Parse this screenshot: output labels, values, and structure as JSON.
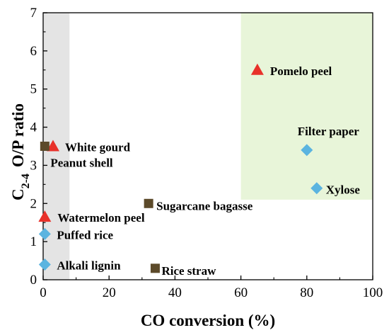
{
  "chart_data": {
    "type": "scatter",
    "title": "",
    "xlabel": "CO conversion (%)",
    "ylabel": {
      "main": "C",
      "subscript": "2-4",
      "rest": "O/P ratio"
    },
    "xlim": [
      0,
      100
    ],
    "ylim": [
      0,
      7
    ],
    "x_ticks": [
      "0",
      "20",
      "40",
      "60",
      "80",
      "100"
    ],
    "y_ticks": [
      "0",
      "1",
      "2",
      "3",
      "4",
      "5",
      "6",
      "7"
    ],
    "grid": false,
    "legend": "none",
    "regions": [
      {
        "x": [
          0,
          8
        ],
        "y": [
          0,
          7
        ],
        "color": "#e4e4e4"
      },
      {
        "x": [
          60,
          100
        ],
        "y": [
          2.1,
          7
        ],
        "color": "#e8f5d9"
      }
    ],
    "points": [
      {
        "label": "Pomelo peel",
        "x": 65,
        "y": 5.5,
        "marker": "triangle",
        "color": "#e8312a"
      },
      {
        "label": "White gourd",
        "x": 3,
        "y": 3.5,
        "marker": "triangle",
        "color": "#e8312a"
      },
      {
        "label": "Watermelon peel",
        "x": 0.5,
        "y": 1.65,
        "marker": "triangle",
        "color": "#e8312a"
      },
      {
        "label": "Peanut shell",
        "x": 0.5,
        "y": 3.5,
        "marker": "square",
        "color": "#5c4a2a"
      },
      {
        "label": "Sugarcane bagasse",
        "x": 32,
        "y": 2.0,
        "marker": "square",
        "color": "#5c4a2a"
      },
      {
        "label": "Rice straw",
        "x": 34,
        "y": 0.3,
        "marker": "square",
        "color": "#5c4a2a"
      },
      {
        "label": "Filter paper",
        "x": 80,
        "y": 3.4,
        "marker": "diamond",
        "color": "#5bb4e0"
      },
      {
        "label": "Xylose",
        "x": 83,
        "y": 2.4,
        "marker": "diamond",
        "color": "#5bb4e0"
      },
      {
        "label": "Puffed rice",
        "x": 0.5,
        "y": 1.2,
        "marker": "diamond",
        "color": "#5bb4e0"
      },
      {
        "label": "Alkali lignin",
        "x": 0.5,
        "y": 0.4,
        "marker": "diamond",
        "color": "#5bb4e0"
      }
    ]
  }
}
